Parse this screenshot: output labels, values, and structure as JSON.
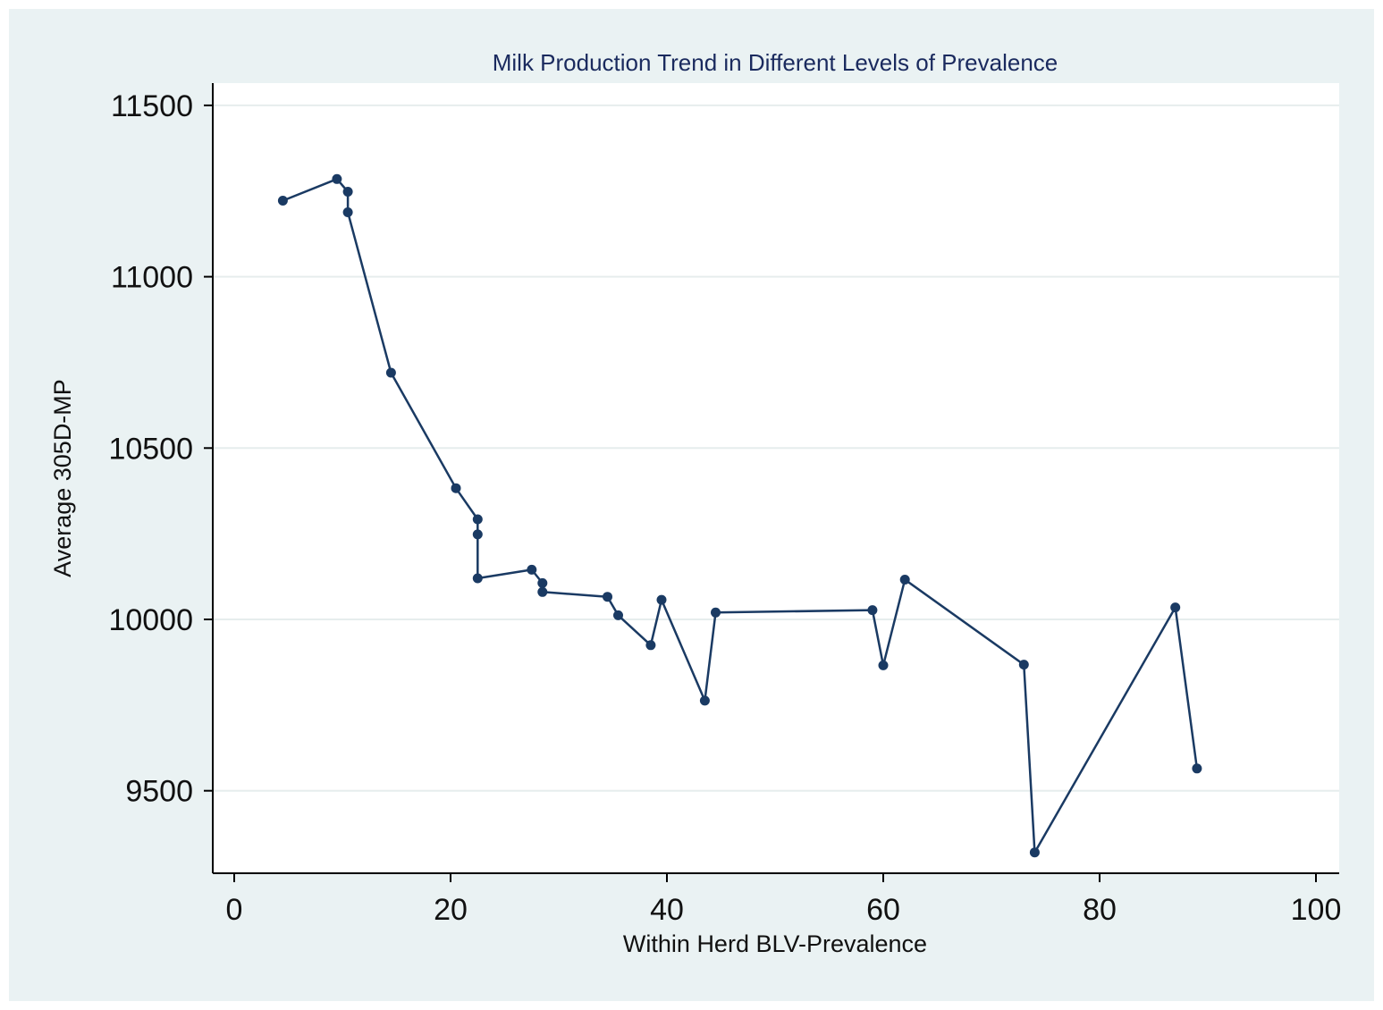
{
  "chart_data": {
    "type": "line",
    "title": "Milk Production Trend in Different Levels of Prevalence",
    "xlabel": "Within Herd BLV-Prevalence",
    "ylabel": "Average 305D-MP",
    "xlim": [
      0,
      100
    ],
    "ylim": [
      9250,
      11560
    ],
    "xticks": [
      0,
      20,
      40,
      60,
      80,
      100
    ],
    "yticks": [
      9500,
      10000,
      10500,
      11000,
      11500
    ],
    "xtick_labels": [
      "0",
      "20",
      "40",
      "60",
      "80",
      "100"
    ],
    "ytick_labels": [
      "9500",
      "10000",
      "10500",
      "11000",
      "11500"
    ],
    "grid": true,
    "series": [
      {
        "name": "Average 305D-MP",
        "color": "#1a3a63",
        "x": [
          4.5,
          9.5,
          10.5,
          10.5,
          14.5,
          20.5,
          22.5,
          22.5,
          22.5,
          27.5,
          28.5,
          28.5,
          34.5,
          35.5,
          38.5,
          39.5,
          43.5,
          44.5,
          59,
          60,
          62,
          73,
          74,
          87,
          89
        ],
        "y": [
          11222,
          11285,
          11248,
          11188,
          10720,
          10383,
          10292,
          10248,
          10120,
          10145,
          10106,
          10080,
          10066,
          10012,
          9925,
          10057,
          9763,
          10020,
          10027,
          9866,
          10116,
          9868,
          9320,
          10035,
          9565
        ]
      }
    ]
  }
}
